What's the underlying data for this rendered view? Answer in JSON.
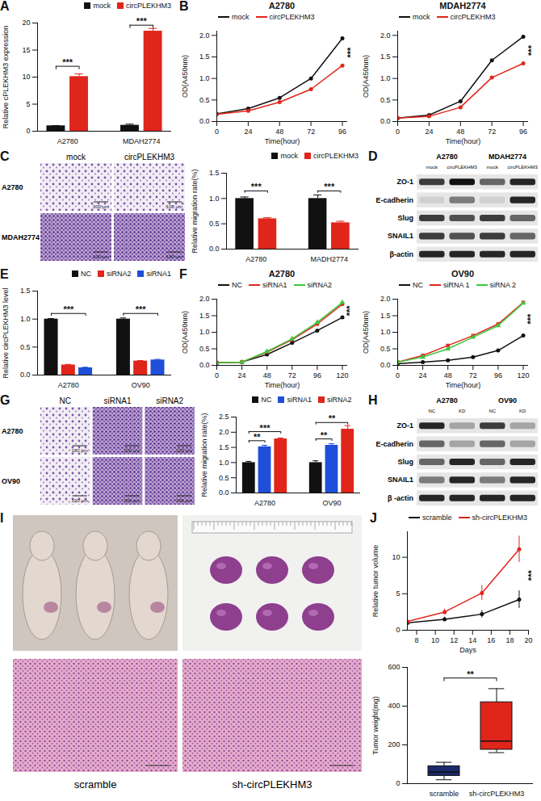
{
  "chart_data": [
    {
      "panel": "A",
      "type": "bar",
      "categories": [
        "A2780",
        "MDAH2774"
      ],
      "series": [
        {
          "name": "mock",
          "color": "#111111",
          "values": [
            1.0,
            1.1
          ],
          "errors": [
            0.05,
            0.2
          ]
        },
        {
          "name": "circPLEKHM3",
          "color": "#e0251b",
          "values": [
            10.1,
            18.5
          ],
          "errors": [
            0.5,
            0.5
          ]
        }
      ],
      "y_label": "Relative cPLEKHM3 expression",
      "ylim": [
        0,
        20
      ],
      "yticks": [
        0,
        5,
        10,
        15,
        20
      ],
      "legend": "top-right",
      "annotations": [
        {
          "category": "A2780",
          "text": "***",
          "y": 12
        },
        {
          "category": "MDAH2774",
          "text": "***",
          "y": 19.6
        }
      ]
    },
    {
      "panel": "B",
      "type": "line",
      "title": "A2780",
      "x": [
        0,
        24,
        48,
        72,
        96
      ],
      "series": [
        {
          "name": "mock",
          "color": "#111111",
          "marker": "circle",
          "values": [
            0.18,
            0.3,
            0.55,
            1.0,
            1.93
          ]
        },
        {
          "name": "circPLEKHM3",
          "color": "#e0251b",
          "marker": "circle",
          "values": [
            0.17,
            0.25,
            0.45,
            0.75,
            1.3
          ]
        }
      ],
      "x_label": "Time(hour)",
      "y_label": "OD(A450nm)",
      "xlim": [
        0,
        100
      ],
      "xticks": [
        0,
        24,
        48,
        72,
        96
      ],
      "ylim": [
        0,
        2.1
      ],
      "yticks": [
        {
          "value": 0,
          "label": "0.0"
        },
        {
          "value": 0.5,
          "label": "0.5"
        },
        {
          "value": 1,
          "label": "1.0"
        },
        {
          "value": 1.5,
          "label": "1.5"
        },
        {
          "value": 2,
          "label": "2.0"
        }
      ],
      "legend": "top-left",
      "annotations": [
        {
          "x": 100,
          "y": 1.6,
          "text": "***"
        }
      ]
    },
    {
      "type": "line",
      "title": "MDAH2774",
      "x": [
        0,
        24,
        48,
        72,
        96
      ],
      "series": [
        {
          "name": "mock",
          "color": "#111111",
          "marker": "circle",
          "values": [
            0.08,
            0.15,
            0.47,
            1.42,
            1.97
          ]
        },
        {
          "name": "circPLEKHM3",
          "color": "#e0251b",
          "marker": "circle",
          "values": [
            0.08,
            0.12,
            0.33,
            1.02,
            1.35
          ]
        }
      ],
      "x_label": "Time(hour)",
      "y_label": "OD(A450nm)",
      "xlim": [
        0,
        100
      ],
      "xticks": [
        0,
        24,
        48,
        72,
        96
      ],
      "ylim": [
        0,
        2.1
      ],
      "yticks": [
        {
          "value": 0,
          "label": "0.0"
        },
        {
          "value": 0.5,
          "label": "0.5"
        },
        {
          "value": 1,
          "label": "1.0"
        },
        {
          "value": 1.5,
          "label": "1.5"
        },
        {
          "value": 2,
          "label": "2.0"
        }
      ],
      "legend": "top-left",
      "annotations": [
        {
          "x": 100,
          "y": 1.65,
          "text": "***"
        }
      ]
    },
    {
      "type": "bar",
      "categories": [
        "A2780",
        "MADH2774"
      ],
      "series": [
        {
          "name": "mock",
          "color": "#111111",
          "values": [
            1.0,
            1.0
          ],
          "errors": [
            0.03,
            0.07
          ]
        },
        {
          "name": "circPLEKHM3",
          "color": "#e0251b",
          "values": [
            0.6,
            0.52
          ],
          "errors": [
            0.02,
            0.03
          ]
        }
      ],
      "y_label": "Relative migration rate(%)",
      "ylim": [
        0,
        1.5
      ],
      "yticks": [
        {
          "value": 0,
          "label": "0.0"
        },
        {
          "value": 0.5,
          "label": "0.5"
        },
        {
          "value": 1,
          "label": "1.0"
        },
        {
          "value": 1.5,
          "label": "1.5"
        }
      ],
      "legend": "top-right",
      "annotations": [
        {
          "category": "A2780",
          "text": "***",
          "y": 1.15
        },
        {
          "category": "MADH2774",
          "text": "***",
          "y": 1.15
        }
      ]
    },
    {
      "panel": "E",
      "type": "bar",
      "categories": [
        "A2780",
        "OV90"
      ],
      "series": [
        {
          "name": "NC",
          "color": "#111111",
          "values": [
            1.0,
            1.0
          ],
          "errors": [
            0.01,
            0.02
          ]
        },
        {
          "name": "siRNA2",
          "color": "#e0251b",
          "values": [
            0.18,
            0.25
          ],
          "errors": [
            0.01,
            0.01
          ]
        },
        {
          "name": "siRNA1",
          "color": "#1f4fd8",
          "values": [
            0.13,
            0.27
          ],
          "errors": [
            0.01,
            0.01
          ]
        }
      ],
      "y_label": "Relative circPLEKHM3 level",
      "ylim": [
        0,
        1.5
      ],
      "yticks": [
        {
          "value": 0,
          "label": "0.0"
        },
        {
          "value": 0.5,
          "label": "0.5"
        },
        {
          "value": 1,
          "label": "1.0"
        },
        {
          "value": 1.5,
          "label": "1.5"
        }
      ],
      "legend": "top-right",
      "annotations": [
        {
          "category": "A2780",
          "text": "***",
          "y": 1.1
        },
        {
          "category": "OV90",
          "text": "***",
          "y": 1.1
        }
      ]
    },
    {
      "panel": "F",
      "type": "line",
      "title": "A2780",
      "x": [
        0,
        24,
        48,
        72,
        96,
        120
      ],
      "series": [
        {
          "name": "NC",
          "color": "#111111",
          "marker": "circle",
          "values": [
            0.08,
            0.1,
            0.33,
            0.68,
            1.05,
            1.45
          ]
        },
        {
          "name": "siRNA1",
          "color": "#e0251b",
          "marker": "square",
          "values": [
            0.08,
            0.1,
            0.4,
            0.78,
            1.25,
            1.85
          ]
        },
        {
          "name": "siRNA2",
          "color": "#3cc83c",
          "marker": "triangle",
          "values": [
            0.08,
            0.1,
            0.42,
            0.8,
            1.3,
            1.9
          ]
        }
      ],
      "x_label": "Time(hour)",
      "y_label": "OD(A450nm)",
      "xlim": [
        0,
        125
      ],
      "xticks": [
        0,
        24,
        48,
        72,
        96,
        120
      ],
      "ylim": [
        0,
        2
      ],
      "yticks": [
        {
          "value": 0,
          "label": "0.0"
        },
        {
          "value": 0.5,
          "label": "0.5"
        },
        {
          "value": 1,
          "label": "1.0"
        },
        {
          "value": 1.5,
          "label": "1.5"
        },
        {
          "value": 2,
          "label": "2.0"
        }
      ],
      "legend": "top-left",
      "annotations": [
        {
          "x": 124,
          "y": 1.65,
          "text": "***"
        }
      ]
    },
    {
      "type": "line",
      "title": "OV90",
      "x": [
        0,
        24,
        48,
        72,
        96,
        120
      ],
      "series": [
        {
          "name": "NC",
          "color": "#111111",
          "marker": "circle",
          "values": [
            0.05,
            0.1,
            0.15,
            0.25,
            0.45,
            0.9
          ]
        },
        {
          "name": "siRNA 1",
          "color": "#e0251b",
          "marker": "square",
          "values": [
            0.1,
            0.3,
            0.6,
            0.9,
            1.25,
            1.9
          ]
        },
        {
          "name": "siRNA 2",
          "color": "#3cc83c",
          "marker": "triangle",
          "values": [
            0.1,
            0.25,
            0.5,
            0.85,
            1.2,
            1.88
          ]
        }
      ],
      "x_label": "Time(hour)",
      "y_label": "OD(A450nm)",
      "xlim": [
        0,
        125
      ],
      "xticks": [
        0,
        24,
        48,
        72,
        96,
        120
      ],
      "ylim": [
        0,
        2
      ],
      "yticks": [
        {
          "value": 0,
          "label": "0.0"
        },
        {
          "value": 0.5,
          "label": "0.5"
        },
        {
          "value": 1,
          "label": "1.0"
        },
        {
          "value": 1.5,
          "label": "1.5"
        },
        {
          "value": 2,
          "label": "2.0"
        }
      ],
      "legend": "top-left",
      "annotations": [
        {
          "x": 124,
          "y": 1.4,
          "text": "***"
        }
      ]
    },
    {
      "type": "bar",
      "categories": [
        "A2780",
        "OV90"
      ],
      "series": [
        {
          "name": "NC",
          "color": "#111111",
          "values": [
            1.0,
            1.0
          ],
          "errors": [
            0.04,
            0.06
          ]
        },
        {
          "name": "siRNA1",
          "color": "#1f4fd8",
          "values": [
            1.52,
            1.57
          ],
          "errors": [
            0.05,
            0.05
          ]
        },
        {
          "name": "siRNA2",
          "color": "#e0251b",
          "values": [
            1.78,
            2.1
          ],
          "errors": [
            0.03,
            0.12
          ]
        }
      ],
      "y_label": "Relative migration rate(%)",
      "ylim": [
        0,
        2.5
      ],
      "yticks": [
        {
          "value": 0,
          "label": "0.0"
        },
        {
          "value": 0.5,
          "label": "0.5"
        },
        {
          "value": 1,
          "label": "1.0"
        },
        {
          "value": 1.5,
          "label": "1.5"
        },
        {
          "value": 2,
          "label": "2.0"
        },
        {
          "value": 2.5,
          "label": "2.5"
        }
      ],
      "legend": "top",
      "annotations": [
        {
          "category": "A2780",
          "from": "NC",
          "to": "siRNA1",
          "text": "**",
          "y": 1.72
        },
        {
          "category": "A2780",
          "from": "NC",
          "to": "siRNA2",
          "text": "***",
          "y": 2.02
        },
        {
          "category": "OV90",
          "from": "NC",
          "to": "siRNA1",
          "text": "**",
          "y": 1.78
        },
        {
          "category": "OV90",
          "from": "NC",
          "to": "siRNA2",
          "text": "**",
          "y": 2.32
        }
      ]
    },
    {
      "panel": "J",
      "type": "line",
      "x": [
        7,
        11,
        15,
        19
      ],
      "series": [
        {
          "name": "scramble",
          "color": "#111111",
          "marker": "circle",
          "values": [
            1.0,
            1.5,
            2.2,
            4.2
          ],
          "errors": [
            0.1,
            0.3,
            0.5,
            1.2
          ]
        },
        {
          "name": "sh-circPLEKHM3",
          "color": "#e0251b",
          "marker": "circle",
          "values": [
            1.2,
            2.5,
            5.1,
            11.1
          ],
          "errors": [
            0.2,
            0.4,
            1.0,
            1.8
          ]
        }
      ],
      "x_label": "Days",
      "y_label": "Relative tumor volume",
      "xlim": [
        7,
        20
      ],
      "xticks": [
        8,
        10,
        12,
        14,
        16,
        18,
        20
      ],
      "ylim": [
        0,
        13.5
      ],
      "yticks": [
        0,
        5,
        10
      ],
      "legend": "top-left",
      "annotations": [
        {
          "x": 20,
          "y": 7.5,
          "text": "***"
        }
      ]
    },
    {
      "type": "box",
      "categories": [
        "scramble",
        "sh-circPLEKHM3"
      ],
      "colors": [
        "#1a2a6c",
        "#e0251b"
      ],
      "stats": [
        {
          "min": 20,
          "q1": 40,
          "median": 60,
          "q3": 90,
          "max": 110
        },
        {
          "min": 160,
          "q1": 175,
          "median": 220,
          "q3": 420,
          "max": 490
        }
      ],
      "y_label": "Tumor weight(mg)",
      "ylim": [
        0,
        600
      ],
      "yticks": [
        0,
        200,
        400,
        600
      ],
      "annotations": [
        {
          "from": "scramble",
          "to": "sh-circPLEKHM3",
          "text": "**",
          "y": 545
        }
      ]
    }
  ],
  "figure_panels": {
    "C_images": {
      "panel": "C",
      "columns": [
        "mock",
        "circPLEKHM3"
      ],
      "rows": [
        "A2780",
        "MDAH2774"
      ],
      "scale_bar": "100 μm"
    },
    "D_blot": {
      "panel": "D",
      "groups": [
        "A2780",
        "MDAH2774"
      ],
      "lanes": [
        "mock",
        "circPLEKHM3",
        "mock",
        "circPLEKHM3"
      ],
      "proteins": [
        {
          "name": "ZO-1",
          "intensity": [
            0.8,
            1.0,
            0.6,
            0.9
          ]
        },
        {
          "name": "E-cadherin",
          "intensity": [
            0.1,
            0.5,
            0.1,
            0.9
          ]
        },
        {
          "name": "Slug",
          "intensity": [
            0.8,
            0.7,
            0.8,
            0.6
          ]
        },
        {
          "name": "SNAIL1",
          "intensity": [
            0.8,
            0.7,
            0.8,
            0.6
          ]
        },
        {
          "name": "β-actin",
          "intensity": [
            0.9,
            0.9,
            0.9,
            0.9
          ]
        }
      ]
    },
    "G_images": {
      "panel": "G",
      "columns": [
        "NC",
        "siRNA1",
        "siRNA2"
      ],
      "rows": [
        "A2780",
        "OV90"
      ],
      "scale_bar": "100 μm"
    },
    "H_blot": {
      "panel": "H",
      "groups": [
        "A2780",
        "OV90"
      ],
      "lanes": [
        "NC",
        "KD",
        "NC",
        "KD"
      ],
      "proteins": [
        {
          "name": "ZO-1",
          "intensity": [
            0.9,
            0.3,
            0.8,
            0.3
          ]
        },
        {
          "name": "E-cadherin",
          "intensity": [
            0.6,
            0.3,
            0.6,
            0.3
          ]
        },
        {
          "name": "Slug",
          "intensity": [
            0.6,
            0.9,
            0.6,
            0.9
          ]
        },
        {
          "name": "SNAIL1",
          "intensity": [
            0.5,
            0.9,
            0.5,
            0.9
          ]
        },
        {
          "name": "β -actin",
          "intensity": [
            0.9,
            0.9,
            0.9,
            0.9
          ]
        }
      ]
    },
    "I_photos": {
      "panel": "I",
      "labels": [
        "scramble",
        "sh-circPLEKHM3"
      ]
    }
  }
}
